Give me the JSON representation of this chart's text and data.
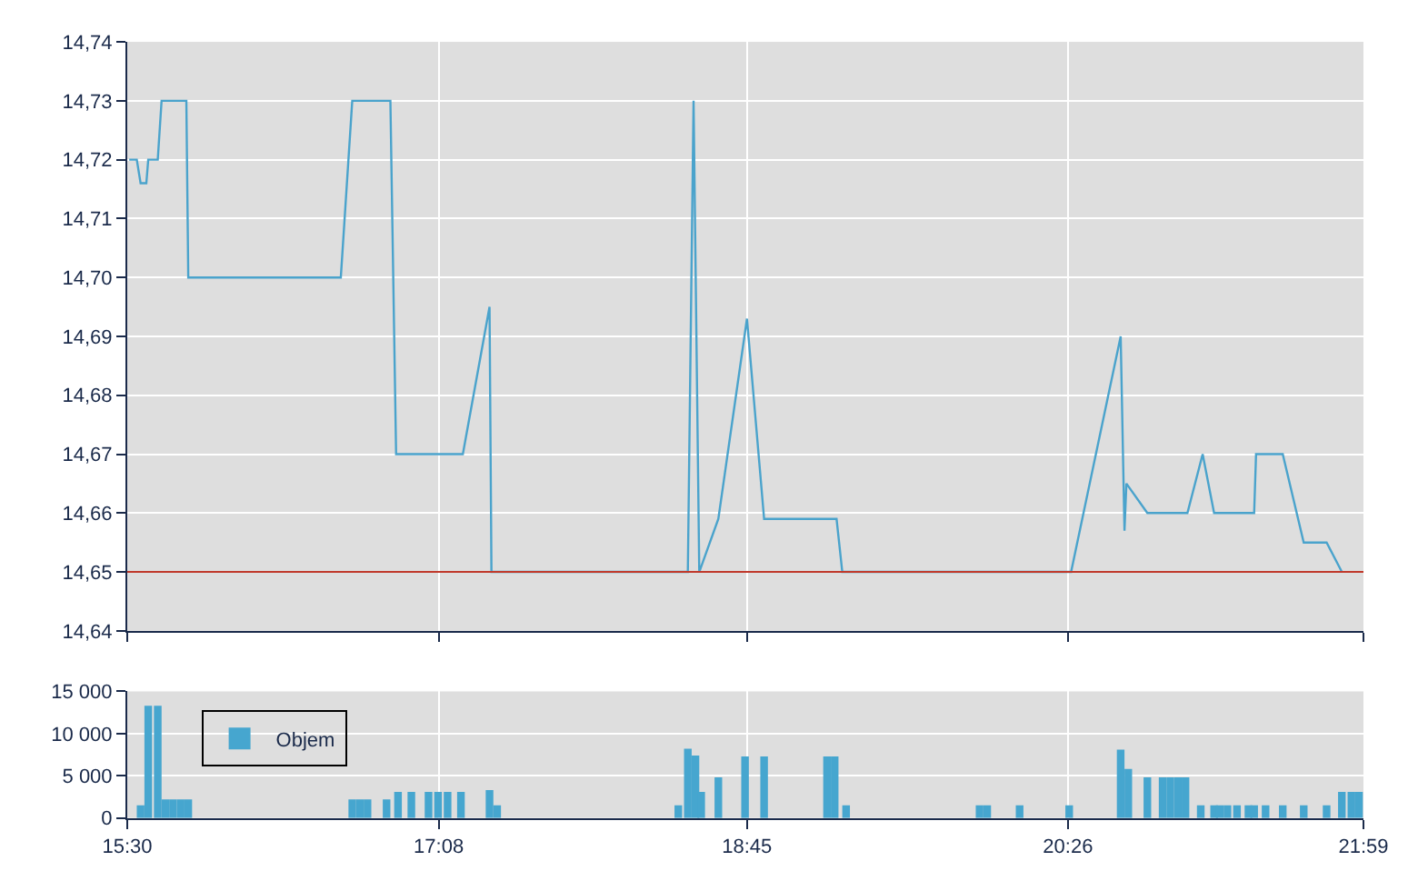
{
  "chart_data": [
    {
      "type": "line",
      "color": "#4aa3cc",
      "x": [
        15.51,
        15.55,
        15.57,
        15.6,
        15.61,
        15.66,
        15.68,
        15.81,
        15.82,
        16.62,
        16.68,
        16.88,
        16.91,
        17.26,
        17.4,
        17.41,
        18.44,
        18.47,
        18.5,
        18.6,
        18.75,
        18.84,
        19.22,
        19.25,
        20.45,
        20.71,
        20.73,
        20.74,
        20.85,
        21.06,
        21.14,
        21.2,
        21.41,
        21.42,
        21.56,
        21.67,
        21.79,
        21.87
      ],
      "values": [
        14.72,
        14.72,
        14.716,
        14.716,
        14.72,
        14.72,
        14.73,
        14.73,
        14.7,
        14.7,
        14.73,
        14.73,
        14.67,
        14.67,
        14.695,
        14.65,
        14.65,
        14.73,
        14.65,
        14.659,
        14.693,
        14.659,
        14.659,
        14.65,
        14.65,
        14.69,
        14.657,
        14.665,
        14.66,
        14.66,
        14.67,
        14.66,
        14.66,
        14.67,
        14.67,
        14.655,
        14.655,
        14.65
      ],
      "xlim": [
        15.5,
        21.9833
      ],
      "xticks": [
        {
          "value": 15.5,
          "label": null
        },
        {
          "value": 17.1333,
          "label": null
        },
        {
          "value": 18.75,
          "label": null
        },
        {
          "value": 20.4333,
          "label": null
        },
        {
          "value": 21.9833,
          "label": null
        }
      ],
      "ylim": [
        14.64,
        14.74
      ],
      "yticks": [
        {
          "value": 14.64,
          "label": "14,64"
        },
        {
          "value": 14.65,
          "label": "14,65"
        },
        {
          "value": 14.66,
          "label": "14,66"
        },
        {
          "value": 14.67,
          "label": "14,67"
        },
        {
          "value": 14.68,
          "label": "14,68"
        },
        {
          "value": 14.69,
          "label": "14,69"
        },
        {
          "value": 14.7,
          "label": "14,70"
        },
        {
          "value": 14.71,
          "label": "14,71"
        },
        {
          "value": 14.72,
          "label": "14,72"
        },
        {
          "value": 14.73,
          "label": "14,73"
        },
        {
          "value": 14.74,
          "label": "14,74"
        }
      ],
      "ref_lines": [
        {
          "axis": "y",
          "value": 14.65,
          "color": "#c0392b"
        }
      ],
      "grid": true,
      "tick_labels": "y"
    },
    {
      "type": "bar",
      "series": [
        {
          "name": "Objem",
          "color": "#46a6cf",
          "x": [
            15.57,
            15.61,
            15.66,
            15.7,
            15.74,
            15.78,
            15.82,
            16.68,
            16.72,
            16.76,
            16.86,
            16.92,
            16.99,
            17.08,
            17.13,
            17.18,
            17.25,
            17.4,
            17.44,
            18.39,
            18.44,
            18.48,
            18.51,
            18.6,
            18.74,
            18.84,
            19.17,
            19.21,
            19.27,
            19.97,
            20.01,
            20.18,
            20.44,
            20.71,
            20.75,
            20.85,
            20.93,
            20.97,
            21.01,
            21.05,
            21.13,
            21.2,
            21.23,
            21.27,
            21.32,
            21.38,
            21.41,
            21.47,
            21.56,
            21.67,
            21.79,
            21.87,
            21.92,
            21.96
          ],
          "values": [
            1500,
            13300,
            13300,
            2200,
            2200,
            2200,
            2200,
            2200,
            2200,
            2200,
            2200,
            3100,
            3100,
            3100,
            3100,
            3100,
            3100,
            3300,
            1500,
            1500,
            8200,
            7400,
            3100,
            4800,
            7300,
            7300,
            7300,
            7300,
            1500,
            1500,
            1500,
            1500,
            1500,
            8100,
            5800,
            4800,
            4800,
            4800,
            4800,
            4800,
            1500,
            1500,
            1500,
            1500,
            1500,
            1500,
            1500,
            1500,
            1500,
            1500,
            1500,
            3100,
            3100,
            3100
          ]
        }
      ],
      "xlim": [
        15.5,
        21.9833
      ],
      "xticks": [
        {
          "value": 15.5,
          "label": "15:30"
        },
        {
          "value": 17.1333,
          "label": "17:08"
        },
        {
          "value": 18.75,
          "label": "18:45"
        },
        {
          "value": 20.4333,
          "label": "20:26"
        },
        {
          "value": 21.9833,
          "label": "21:59"
        }
      ],
      "ylim": [
        0,
        15000
      ],
      "yticks": [
        {
          "value": 0,
          "label": "0"
        },
        {
          "value": 5000,
          "label": "5 000"
        },
        {
          "value": 10000,
          "label": "10 000"
        },
        {
          "value": 15000,
          "label": "15 000"
        }
      ],
      "grid": true,
      "legend": "top left"
    }
  ]
}
